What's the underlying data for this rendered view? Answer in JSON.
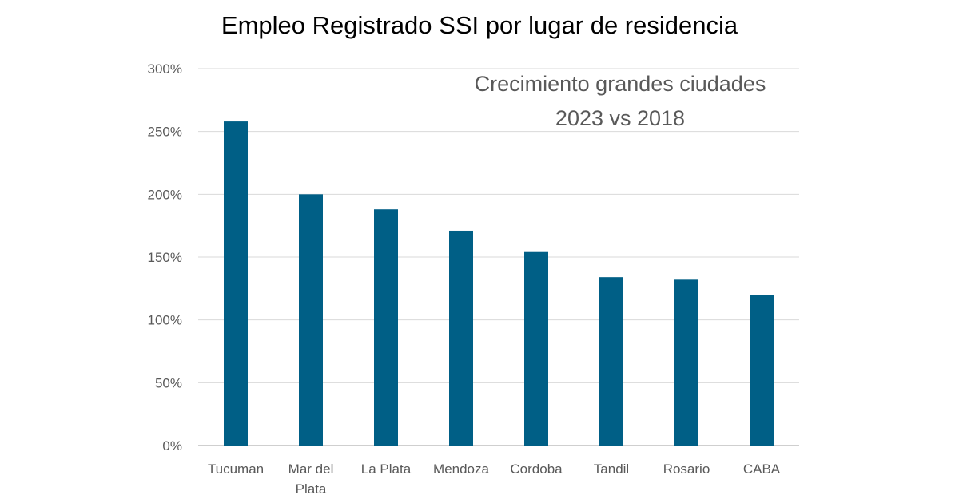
{
  "chart_data": {
    "type": "bar",
    "title": "Empleo Registrado SSI por lugar de residencia",
    "annotation": [
      "Crecimiento grandes ciudades",
      "2023 vs 2018"
    ],
    "categories": [
      "Tucuman",
      "Mar del Plata",
      "La Plata",
      "Mendoza",
      "Cordoba",
      "Tandil",
      "Rosario",
      "CABA"
    ],
    "series": [
      {
        "values": [
          258,
          200,
          188,
          171,
          154,
          134,
          132,
          120
        ]
      }
    ],
    "ylim": [
      0,
      300
    ],
    "yticks": [
      0,
      50,
      100,
      150,
      200,
      250,
      300
    ],
    "ytick_labels": [
      "0%",
      "50%",
      "100%",
      "150%",
      "200%",
      "250%",
      "300%"
    ],
    "unit": "%",
    "grid": true,
    "legend": "none",
    "colors": {
      "bar": "#005f86",
      "grid": "#d9d9d9",
      "axis_text": "#595959",
      "annotation_text": "#595959",
      "title_text": "#000000"
    }
  }
}
